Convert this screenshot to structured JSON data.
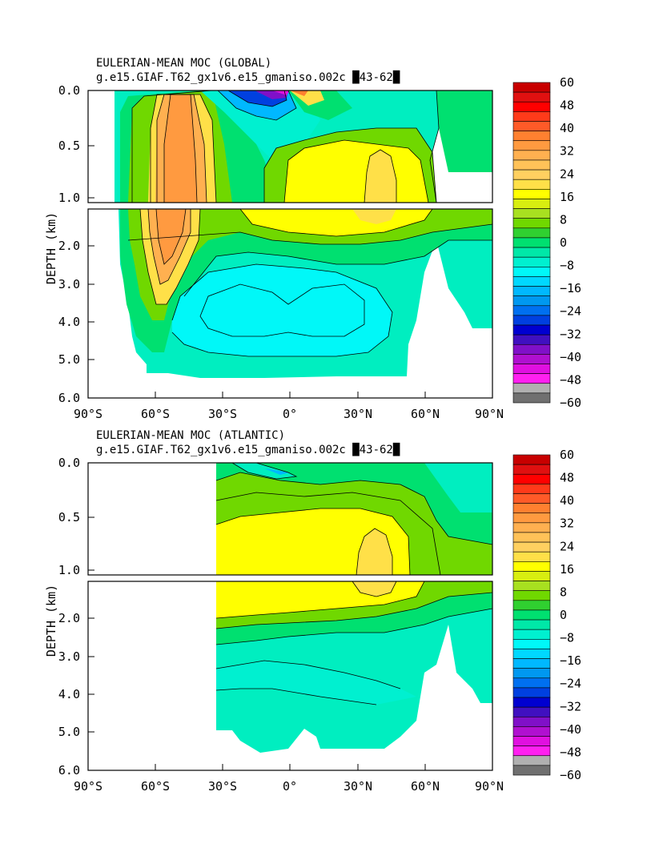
{
  "panels": [
    {
      "title1": "EULERIAN-MEAN MOC (GLOBAL)",
      "title2": "g.e15.GIAF.T62_gx1v6.e15_gmaniso.002c █43-62█",
      "ylabel": "DEPTH (km)",
      "yticks": [
        "0.0",
        "0.5",
        "1.0",
        "2.0",
        "3.0",
        "4.0",
        "5.0",
        "6.0"
      ],
      "xticks": [
        "90°S",
        "60°S",
        "30°S",
        "0°",
        "30°N",
        "60°N",
        "90°N"
      ]
    },
    {
      "title1": "EULERIAN-MEAN MOC (ATLANTIC)",
      "title2": "g.e15.GIAF.T62_gx1v6.e15_gmaniso.002c █43-62█",
      "ylabel": "DEPTH (km)",
      "yticks": [
        "0.0",
        "0.5",
        "1.0",
        "2.0",
        "3.0",
        "4.0",
        "5.0",
        "6.0"
      ],
      "xticks": [
        "90°S",
        "60°S",
        "30°S",
        "0°",
        "30°N",
        "60°N",
        "90°N"
      ]
    }
  ],
  "colorbar": {
    "labels": [
      "60",
      "48",
      "40",
      "32",
      "24",
      "16",
      "8",
      "0",
      "−8",
      "−16",
      "−24",
      "−32",
      "−40",
      "−48",
      "−60"
    ],
    "colors": [
      "#c80000",
      "#e01010",
      "#ff0000",
      "#ff3a1a",
      "#ff5a28",
      "#ff8030",
      "#ff9a40",
      "#ffb050",
      "#ffc258",
      "#ffd060",
      "#ffe048",
      "#ffff00",
      "#d8ee10",
      "#a8e020",
      "#70d800",
      "#30d030",
      "#00e070",
      "#00e8a8",
      "#00f0d0",
      "#00f8f8",
      "#00d8ff",
      "#00b8ff",
      "#0098f0",
      "#0070f0",
      "#0040e0",
      "#0000d0",
      "#4010c0",
      "#8010c8",
      "#b010d0",
      "#e010e0",
      "#ff20f0",
      "#b0b0b0",
      "#707070"
    ]
  },
  "chart_data": [
    {
      "type": "heatmap",
      "title": "EULERIAN-MEAN MOC (GLOBAL)",
      "subtitle": "g.e15.GIAF.T62_gx1v6.e15_gmaniso.002c █43-62█",
      "ylabel": "DEPTH (km)",
      "x_range_deg": [
        -90,
        90
      ],
      "y_range_km": [
        0,
        6
      ],
      "features": [
        {
          "lat": [
            -60,
            -45
          ],
          "depth_km": [
            0,
            3.0
          ],
          "value": 28
        },
        {
          "lat": [
            -15,
            -3
          ],
          "depth_km": [
            0,
            0.15
          ],
          "value": -40
        },
        {
          "lat": [
            0,
            6
          ],
          "depth_km": [
            0,
            0.1
          ],
          "value": 30
        },
        {
          "lat": [
            -10,
            60
          ],
          "depth_km": [
            0.5,
            1.6
          ],
          "value": 16
        },
        {
          "lat": [
            -50,
            35
          ],
          "depth_km": [
            3.3,
            4.5
          ],
          "value": -12
        }
      ]
    },
    {
      "type": "heatmap",
      "title": "EULERIAN-MEAN MOC (ATLANTIC)",
      "subtitle": "g.e15.GIAF.T62_gx1v6.e15_gmaniso.002c █43-62█",
      "ylabel": "DEPTH (km)",
      "x_range_deg": [
        -90,
        90
      ],
      "y_range_km": [
        0,
        6
      ],
      "features": [
        {
          "lat": [
            -10,
            -2
          ],
          "depth_km": [
            0,
            0.1
          ],
          "value": -10
        },
        {
          "lat": [
            -30,
            55
          ],
          "depth_km": [
            0.5,
            2.0
          ],
          "value": 16
        },
        {
          "lat": [
            35,
            50
          ],
          "depth_km": [
            0.6,
            1.6
          ],
          "value": 18
        },
        {
          "lat": [
            -30,
            60
          ],
          "depth_km": [
            3.8,
            5.5
          ],
          "value": -4
        }
      ]
    }
  ]
}
